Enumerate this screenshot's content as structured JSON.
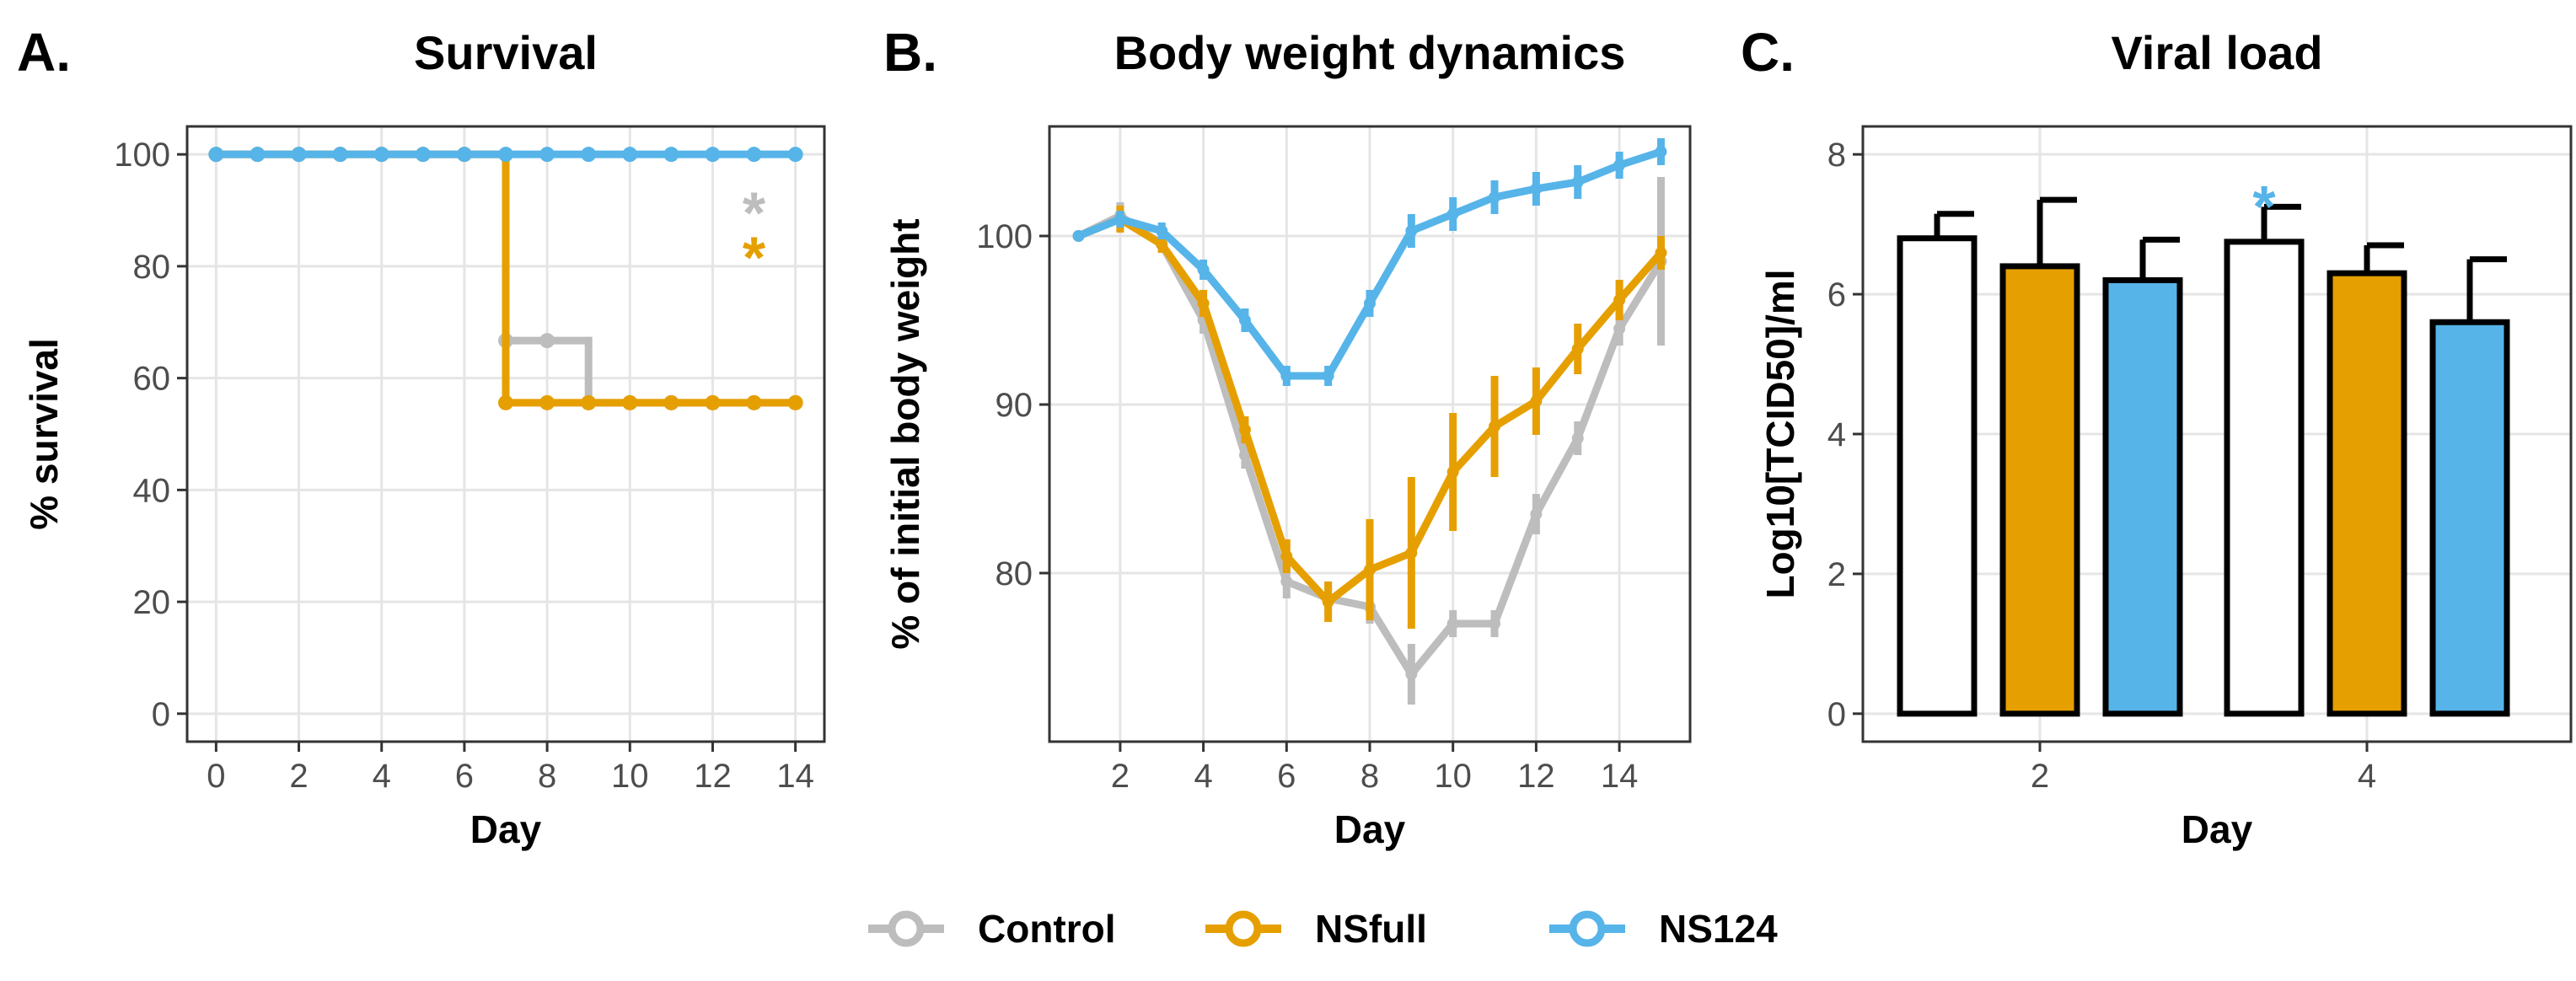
{
  "colors": {
    "Control": "#bdbdbd",
    "NSfull": "#e69f00",
    "NS124": "#56b4e9"
  },
  "legend": {
    "items": [
      {
        "label": "Control",
        "key": "Control"
      },
      {
        "label": "NSfull",
        "key": "NSfull"
      },
      {
        "label": "NS124",
        "key": "NS124"
      }
    ]
  },
  "chart_data": [
    {
      "panel_label": "A.",
      "type": "line",
      "title": "Survival",
      "xlabel": "Day",
      "ylabel": "% survival",
      "xlim": [
        -0.7,
        14.7
      ],
      "ylim": [
        -5,
        105
      ],
      "xticks": [
        0,
        2,
        4,
        6,
        8,
        10,
        12,
        14
      ],
      "yticks": [
        0,
        20,
        40,
        60,
        80,
        100
      ],
      "step": true,
      "series": [
        {
          "name": "Control",
          "x": [
            0,
            1,
            2,
            3,
            4,
            5,
            6,
            7,
            8,
            9,
            10,
            11,
            12,
            13,
            14
          ],
          "values": [
            100,
            100,
            100,
            100,
            100,
            100,
            100,
            66.7,
            66.7,
            55.6,
            55.6,
            55.6,
            55.6,
            55.6,
            55.6
          ]
        },
        {
          "name": "NSfull",
          "x": [
            0,
            1,
            2,
            3,
            4,
            5,
            6,
            7,
            8,
            9,
            10,
            11,
            12,
            13,
            14
          ],
          "values": [
            100,
            100,
            100,
            100,
            100,
            100,
            100,
            55.6,
            55.6,
            55.6,
            55.6,
            55.6,
            55.6,
            55.6,
            55.6
          ]
        },
        {
          "name": "NS124",
          "x": [
            0,
            1,
            2,
            3,
            4,
            5,
            6,
            7,
            8,
            9,
            10,
            11,
            12,
            13,
            14
          ],
          "values": [
            100,
            100,
            100,
            100,
            100,
            100,
            100,
            100,
            100,
            100,
            100,
            100,
            100,
            100,
            100
          ]
        }
      ],
      "annotations": [
        {
          "text": "*",
          "key": "Control",
          "x": 13,
          "y": 92
        },
        {
          "text": "*",
          "key": "NSfull",
          "x": 13,
          "y": 84
        }
      ]
    },
    {
      "panel_label": "B.",
      "type": "line",
      "title": "Body weight dynamics",
      "xlabel": "Day",
      "ylabel": "% of initial body weight",
      "xlim": [
        0.3,
        15.7
      ],
      "ylim": [
        70,
        106.5
      ],
      "xticks": [
        2,
        4,
        6,
        8,
        10,
        12,
        14
      ],
      "yticks": [
        80,
        90,
        100
      ],
      "series": [
        {
          "name": "Control",
          "x": [
            1,
            2,
            3,
            4,
            5,
            6,
            7,
            8,
            9,
            10,
            11,
            12,
            13,
            14,
            15
          ],
          "values": [
            100,
            101.2,
            99.5,
            95,
            87,
            79.5,
            78.5,
            78,
            74,
            77,
            77,
            83.5,
            88,
            94.5,
            98.5
          ],
          "err": [
            0,
            0.8,
            0.5,
            0.8,
            0.8,
            1,
            1,
            1,
            1.8,
            0.8,
            0.8,
            1.2,
            1,
            1,
            5
          ]
        },
        {
          "name": "NSfull",
          "x": [
            1,
            2,
            3,
            4,
            5,
            6,
            7,
            8,
            9,
            10,
            11,
            12,
            13,
            14,
            15
          ],
          "values": [
            100,
            101,
            99.5,
            96,
            88.5,
            81,
            78.3,
            80.2,
            81.2,
            86,
            88.7,
            90.2,
            93.3,
            96.2,
            99
          ],
          "err": [
            0,
            0.8,
            0.5,
            0.8,
            0.8,
            1,
            1.2,
            3,
            4.5,
            3.5,
            3,
            2,
            1.5,
            1.2,
            1
          ]
        },
        {
          "name": "NS124",
          "x": [
            1,
            2,
            3,
            4,
            5,
            6,
            7,
            8,
            9,
            10,
            11,
            12,
            13,
            14,
            15
          ],
          "values": [
            100,
            101,
            100.3,
            98,
            95,
            91.7,
            91.7,
            96,
            100.3,
            101.3,
            102.3,
            102.8,
            103.2,
            104.2,
            105
          ],
          "err": [
            0,
            0.5,
            0.5,
            0.6,
            0.7,
            0.6,
            0.6,
            0.8,
            1,
            1,
            1,
            1,
            1,
            0.8,
            0.8
          ]
        }
      ]
    },
    {
      "panel_label": "C.",
      "type": "bar",
      "title": "Viral load",
      "xlabel": "Day",
      "ylabel": "Log10[TCID50]/ml",
      "categories": [
        "2",
        "4"
      ],
      "ylim": [
        -0.4,
        8.4
      ],
      "yticks": [
        0,
        2,
        4,
        6,
        8
      ],
      "bar_fill": {
        "Control": "#ffffff",
        "NSfull": "#e69f00",
        "NS124": "#56b4e9"
      },
      "series": [
        {
          "name": "Control",
          "values": [
            6.8,
            6.75
          ],
          "err": [
            0.35,
            0.5
          ]
        },
        {
          "name": "NSfull",
          "values": [
            6.4,
            6.3
          ],
          "err": [
            0.95,
            0.4
          ]
        },
        {
          "name": "NS124",
          "values": [
            6.2,
            5.6
          ],
          "err": [
            0.58,
            0.9
          ]
        }
      ],
      "annotations": [
        {
          "text": "*",
          "key": "NS124",
          "category": "4",
          "series": "Control",
          "y": 7.45
        }
      ]
    }
  ]
}
